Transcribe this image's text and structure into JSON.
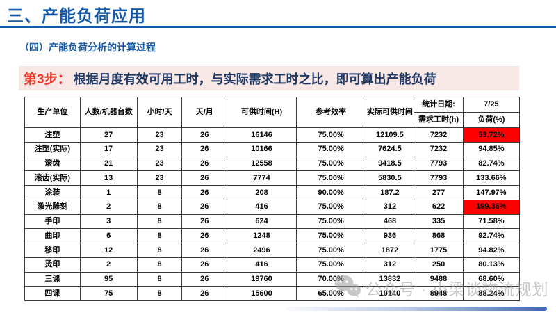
{
  "header": {
    "title": "三、产能负荷应用",
    "subtitle": "（四）产能负荷分析的计算过程"
  },
  "banner": {
    "step_label": "第3步：",
    "text": "根据月度有效可用工时，与实际需求工时之比，即可算出产能负荷"
  },
  "colors": {
    "title_blue": "#1659A8",
    "banner_background": "#F7E8E6",
    "step_red": "#E8372C",
    "banner_text_navy": "#1F3864",
    "highlight_red": "#FF0000",
    "highlight_text": "#FFFFFF"
  },
  "table": {
    "columns": [
      "生产单位",
      "人数/机器台数",
      "小时/天",
      "天/月",
      "可供时间(H)",
      "参考效率",
      "实际可供时间"
    ],
    "split_header": {
      "top_left": "统计日期:",
      "top_right": "7/25",
      "bottom_left": "需求工时(h)",
      "bottom_right": "负荷(%)"
    },
    "row_keys": [
      "unit",
      "count",
      "hours",
      "days",
      "available",
      "efficiency",
      "actual",
      "demand",
      "load"
    ],
    "rows": [
      {
        "unit": "注塑",
        "count": "27",
        "hours": "23",
        "days": "26",
        "available": "16146",
        "efficiency": "75.00%",
        "actual": "12109.5",
        "demand": "7232",
        "load": "59.72%",
        "highlight": true
      },
      {
        "unit": "注塑(实际)",
        "count": "17",
        "hours": "23",
        "days": "26",
        "available": "10166",
        "efficiency": "75.00%",
        "actual": "7624.5",
        "demand": "7232",
        "load": "94.85%",
        "highlight": false
      },
      {
        "unit": "滚齿",
        "count": "21",
        "hours": "23",
        "days": "26",
        "available": "12558",
        "efficiency": "75.00%",
        "actual": "9418.5",
        "demand": "7793",
        "load": "82.74%",
        "highlight": false
      },
      {
        "unit": "滚齿(实际)",
        "count": "13",
        "hours": "23",
        "days": "26",
        "available": "7774",
        "efficiency": "75.00%",
        "actual": "5830.5",
        "demand": "7793",
        "load": "133.66%",
        "highlight": false
      },
      {
        "unit": "涂装",
        "count": "1",
        "hours": "8",
        "days": "26",
        "available": "208",
        "efficiency": "90.00%",
        "actual": "187.2",
        "demand": "277",
        "load": "147.97%",
        "highlight": false
      },
      {
        "unit": "激光雕刻",
        "count": "2",
        "hours": "8",
        "days": "26",
        "available": "416",
        "efficiency": "75.00%",
        "actual": "312",
        "demand": "622",
        "load": "199.36%",
        "highlight": true
      },
      {
        "unit": "手印",
        "count": "3",
        "hours": "8",
        "days": "26",
        "available": "624",
        "efficiency": "75.00%",
        "actual": "468",
        "demand": "335",
        "load": "71.58%",
        "highlight": false
      },
      {
        "unit": "曲印",
        "count": "6",
        "hours": "8",
        "days": "26",
        "available": "1248",
        "efficiency": "75.00%",
        "actual": "936",
        "demand": "868",
        "load": "92.74%",
        "highlight": false
      },
      {
        "unit": "移印",
        "count": "12",
        "hours": "8",
        "days": "26",
        "available": "2496",
        "efficiency": "75.00%",
        "actual": "1872",
        "demand": "1775",
        "load": "94.82%",
        "highlight": false
      },
      {
        "unit": "烫印",
        "count": "2",
        "hours": "8",
        "days": "26",
        "available": "416",
        "efficiency": "75.00%",
        "actual": "312",
        "demand": "250",
        "load": "80.13%",
        "highlight": false
      },
      {
        "unit": "三课",
        "count": "95",
        "hours": "8",
        "days": "26",
        "available": "19760",
        "efficiency": "70.00%",
        "actual": "13832",
        "demand": "9488",
        "load": "68.60%",
        "highlight": false
      },
      {
        "unit": "四课",
        "count": "75",
        "hours": "8",
        "days": "26",
        "available": "15600",
        "efficiency": "65.00%",
        "actual": "10140",
        "demand": "8948",
        "load": "88.24%",
        "highlight": false
      }
    ]
  },
  "watermark": {
    "icon": "wechat-icon",
    "text": "公众号 · 小梁谈物流规划"
  }
}
